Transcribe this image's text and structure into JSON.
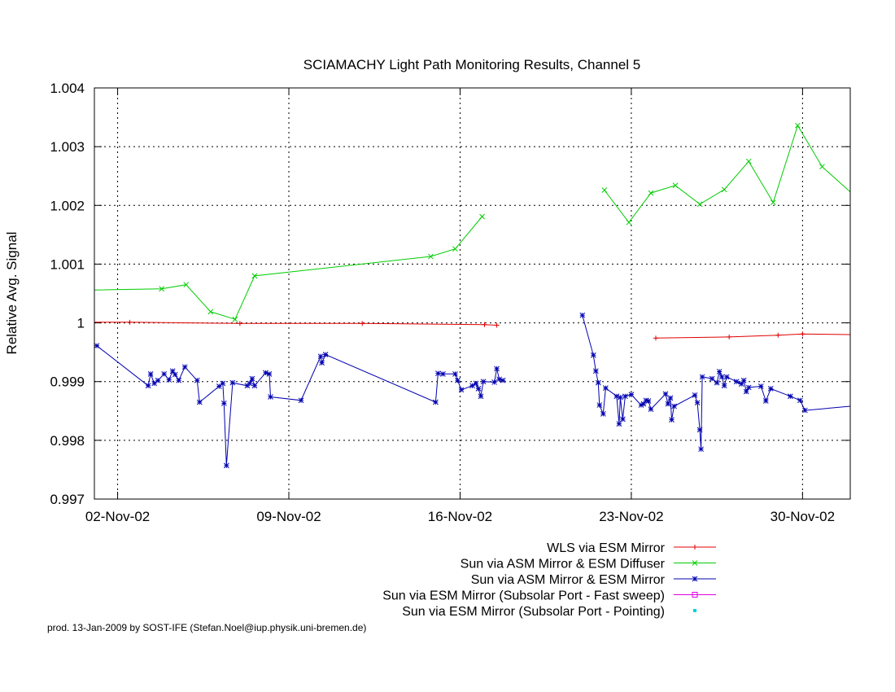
{
  "chart_data": {
    "type": "line",
    "title": "SCIAMACHY Light Path Monitoring Results, Channel 5",
    "ylabel": "Relative Avg. Signal",
    "xlabel": "",
    "footer": "prod. 13-Jan-2009 by SOST-IFE (Stefan.Noel@iup.physik.uni-bremen.de)",
    "x_unit": "days (02-Nov-02 = 0)",
    "xlim": [
      -0.95,
      29.95
    ],
    "ylim": [
      0.997,
      1.004
    ],
    "grid": true,
    "legend_position": "bottom-right",
    "x_ticks": [
      {
        "x": 0,
        "label": "02-Nov-02"
      },
      {
        "x": 7,
        "label": "09-Nov-02"
      },
      {
        "x": 14,
        "label": "16-Nov-02"
      },
      {
        "x": 21,
        "label": "23-Nov-02"
      },
      {
        "x": 28,
        "label": "30-Nov-02"
      }
    ],
    "y_ticks": [
      {
        "y": 0.997,
        "label": "0.997"
      },
      {
        "y": 0.998,
        "label": "0.998"
      },
      {
        "y": 0.999,
        "label": "0.999"
      },
      {
        "y": 1.0,
        "label": "1"
      },
      {
        "y": 1.001,
        "label": "1.001"
      },
      {
        "y": 1.002,
        "label": "1.002"
      },
      {
        "y": 1.003,
        "label": "1.003"
      },
      {
        "y": 1.004,
        "label": "1.004"
      }
    ],
    "series": [
      {
        "name": "WLS via ESM Mirror",
        "color": "#e00000",
        "marker": "plus",
        "segments": [
          [
            [
              -0.95,
              1.00001
            ],
            [
              0.5,
              1.00001
            ],
            [
              5.0,
              0.99999
            ],
            [
              10.0,
              0.99999
            ],
            [
              15.0,
              0.99997
            ],
            [
              15.5,
              0.99996
            ]
          ],
          [
            [
              22.0,
              0.99974
            ],
            [
              25.0,
              0.99976
            ],
            [
              27.0,
              0.99979
            ],
            [
              28.0,
              0.99981
            ],
            [
              29.95,
              0.9998
            ]
          ]
        ]
      },
      {
        "name": "Sun via ASM Mirror & ESM Diffuser",
        "color": "#00cc00",
        "marker": "x",
        "segments": [
          [
            [
              -0.95,
              1.00056
            ],
            [
              1.8,
              1.00058
            ],
            [
              2.8,
              1.00065
            ],
            [
              3.8,
              1.00019
            ],
            [
              4.8,
              1.00006
            ],
            [
              5.6,
              1.0008
            ],
            [
              12.8,
              1.00113
            ],
            [
              13.8,
              1.00126
            ],
            [
              14.9,
              1.00181
            ]
          ],
          [
            [
              19.9,
              1.00226
            ],
            [
              20.9,
              1.00171
            ],
            [
              21.8,
              1.00221
            ],
            [
              22.8,
              1.00234
            ],
            [
              23.8,
              1.00202
            ],
            [
              24.8,
              1.00227
            ],
            [
              25.8,
              1.00275
            ],
            [
              26.8,
              1.00205
            ],
            [
              27.8,
              1.00336
            ],
            [
              28.8,
              1.00266
            ],
            [
              29.95,
              1.00223
            ]
          ]
        ]
      },
      {
        "name": "Sun via ASM Mirror & ESM Mirror",
        "color": "#0000b0",
        "marker": "star",
        "segments": [
          [
            [
              -0.85,
              0.99961
            ],
            [
              1.25,
              0.99893
            ],
            [
              1.35,
              0.99913
            ],
            [
              1.5,
              0.99897
            ],
            [
              1.65,
              0.99902
            ],
            [
              1.9,
              0.99913
            ],
            [
              2.1,
              0.99903
            ],
            [
              2.25,
              0.99918
            ],
            [
              2.35,
              0.99912
            ],
            [
              2.5,
              0.99902
            ],
            [
              2.75,
              0.99925
            ],
            [
              3.25,
              0.99902
            ],
            [
              3.35,
              0.99865
            ],
            [
              4.15,
              0.99892
            ],
            [
              4.3,
              0.99897
            ],
            [
              4.35,
              0.99863
            ],
            [
              4.45,
              0.99757
            ],
            [
              4.7,
              0.99898
            ],
            [
              5.3,
              0.99893
            ],
            [
              5.4,
              0.99897
            ],
            [
              5.5,
              0.99905
            ],
            [
              5.6,
              0.99893
            ],
            [
              6.05,
              0.99915
            ],
            [
              6.2,
              0.99913
            ],
            [
              6.25,
              0.99874
            ],
            [
              7.5,
              0.99868
            ],
            [
              8.3,
              0.99943
            ],
            [
              8.35,
              0.99932
            ],
            [
              8.5,
              0.99946
            ],
            [
              13.0,
              0.99865
            ],
            [
              13.1,
              0.99914
            ],
            [
              13.3,
              0.99913
            ],
            [
              13.8,
              0.99913
            ],
            [
              13.9,
              0.99902
            ],
            [
              14.05,
              0.99886
            ],
            [
              14.5,
              0.99893
            ],
            [
              14.65,
              0.99897
            ],
            [
              14.75,
              0.99888
            ],
            [
              14.85,
              0.99875
            ],
            [
              14.95,
              0.999
            ],
            [
              15.4,
              0.99899
            ],
            [
              15.5,
              0.99922
            ],
            [
              15.6,
              0.99904
            ],
            [
              15.75,
              0.99902
            ]
          ],
          [
            [
              19.0,
              1.00013
            ],
            [
              19.45,
              0.99945
            ],
            [
              19.55,
              0.99918
            ],
            [
              19.65,
              0.99898
            ],
            [
              19.7,
              0.9986
            ],
            [
              19.85,
              0.99845
            ],
            [
              19.95,
              0.99889
            ],
            [
              20.4,
              0.99875
            ],
            [
              20.5,
              0.99828
            ],
            [
              20.55,
              0.99873
            ],
            [
              20.65,
              0.99836
            ],
            [
              20.75,
              0.99875
            ],
            [
              21.0,
              0.99878
            ],
            [
              21.4,
              0.9986
            ],
            [
              21.5,
              0.99862
            ],
            [
              21.6,
              0.99868
            ],
            [
              21.7,
              0.99867
            ],
            [
              21.8,
              0.99853
            ],
            [
              22.4,
              0.99879
            ],
            [
              22.5,
              0.99862
            ],
            [
              22.6,
              0.99872
            ],
            [
              22.65,
              0.99835
            ],
            [
              22.75,
              0.99858
            ],
            [
              23.6,
              0.99877
            ],
            [
              23.7,
              0.99864
            ],
            [
              23.8,
              0.99818
            ],
            [
              23.85,
              0.99785
            ],
            [
              23.9,
              0.99908
            ],
            [
              24.3,
              0.99905
            ],
            [
              24.5,
              0.99898
            ],
            [
              24.6,
              0.99917
            ],
            [
              24.7,
              0.99908
            ],
            [
              24.8,
              0.99893
            ],
            [
              24.9,
              0.99908
            ],
            [
              25.3,
              0.999
            ],
            [
              25.5,
              0.99896
            ],
            [
              25.6,
              0.99902
            ],
            [
              25.7,
              0.99883
            ],
            [
              25.8,
              0.9989
            ],
            [
              26.3,
              0.99892
            ],
            [
              26.5,
              0.99867
            ],
            [
              26.7,
              0.99888
            ],
            [
              27.5,
              0.99875
            ],
            [
              27.9,
              0.99868
            ],
            [
              28.1,
              0.99851
            ],
            [
              29.95,
              0.99858
            ]
          ]
        ]
      },
      {
        "name": "Sun via ESM Mirror (Subsolar Port - Fast sweep)",
        "color": "#e000e0",
        "marker": "square",
        "segments": []
      },
      {
        "name": "Sun via ESM Mirror (Subsolar Port - Pointing)",
        "color": "#00d0e0",
        "marker": "dot",
        "segments": []
      }
    ]
  }
}
